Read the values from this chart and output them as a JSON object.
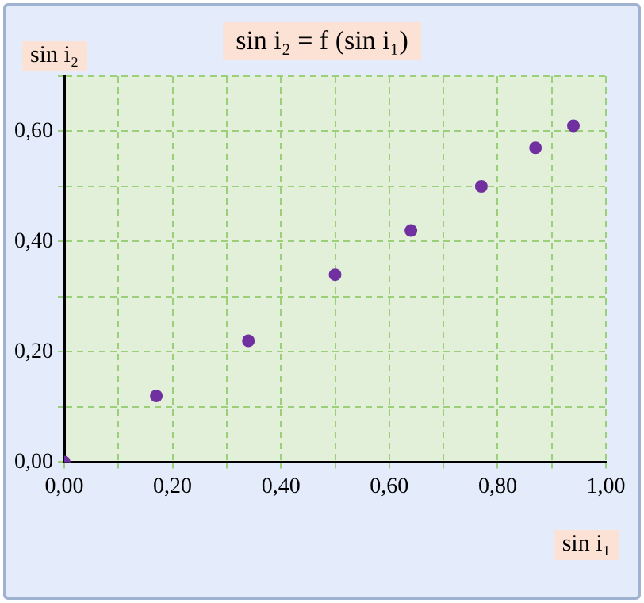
{
  "chart_data": {
    "type": "scatter",
    "title": "sin i₂ = f (sin i₁)",
    "xlabel": "sin i₁",
    "ylabel": "sin i₂",
    "x": [
      0,
      0.17,
      0.34,
      0.5,
      0.64,
      0.77,
      0.87,
      0.94
    ],
    "series": [
      {
        "color": "#7030a0",
        "values": [
          0,
          0.12,
          0.22,
          0.34,
          0.42,
          0.5,
          0.57,
          0.61
        ]
      }
    ],
    "xlim": [
      0,
      1
    ],
    "ylim": [
      0,
      0.7
    ],
    "xticks": [
      {
        "value": 0,
        "label": "0,00"
      },
      {
        "value": 0.1,
        "label": null
      },
      {
        "value": 0.2,
        "label": "0,20"
      },
      {
        "value": 0.3,
        "label": null
      },
      {
        "value": 0.4,
        "label": "0,40"
      },
      {
        "value": 0.5,
        "label": null
      },
      {
        "value": 0.6,
        "label": "0,60"
      },
      {
        "value": 0.7,
        "label": null
      },
      {
        "value": 0.8,
        "label": "0,80"
      },
      {
        "value": 0.9,
        "label": null
      },
      {
        "value": 1,
        "label": "1,00"
      }
    ],
    "yticks": [
      {
        "value": 0,
        "label": "0,00"
      },
      {
        "value": 0.1,
        "label": null
      },
      {
        "value": 0.2,
        "label": "0,20"
      },
      {
        "value": 0.3,
        "label": null
      },
      {
        "value": 0.4,
        "label": "0,40"
      },
      {
        "value": 0.5,
        "label": null
      },
      {
        "value": 0.6,
        "label": "0,60"
      },
      {
        "value": 0.7,
        "label": null
      }
    ],
    "grid": true,
    "legend": false,
    "marker": "circle"
  }
}
